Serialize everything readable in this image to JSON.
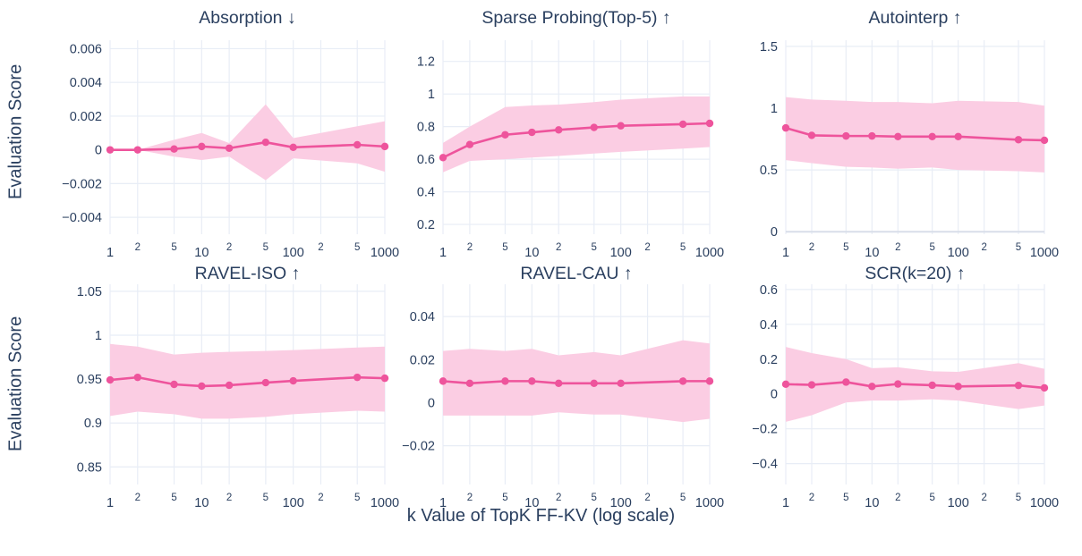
{
  "figure": {
    "x_axis_title": "k Value of TopK FF-KV (log scale)",
    "y_axis_title": "Evaluation Score",
    "colors": {
      "line": "#ee549c",
      "band": "#fbcde3",
      "grid": "#e8edf6",
      "zeroline": "#d8dee9",
      "text": "#2a3f5f",
      "background": "#ffffff"
    },
    "x_scale": "log",
    "x_range": [
      1,
      1000
    ],
    "x_ticks": {
      "values": [
        1,
        2,
        5,
        10,
        20,
        50,
        100,
        200,
        500,
        1000
      ],
      "labels": [
        "1",
        "2",
        "5",
        "10",
        "2",
        "5",
        "100",
        "2",
        "5",
        "1000"
      ],
      "major": [
        true,
        false,
        false,
        true,
        false,
        false,
        true,
        false,
        false,
        true
      ]
    }
  },
  "chart_data": [
    {
      "type": "line",
      "title": "Absorption ↓",
      "row": 0,
      "col": 0,
      "x": [
        1,
        2,
        5,
        10,
        20,
        50,
        100,
        500,
        1000
      ],
      "y": [
        0.0,
        0.0,
        5e-05,
        0.0002,
        0.0001,
        0.00045,
        0.00015,
        0.0003,
        0.0002
      ],
      "band_upper": [
        0.0,
        0.0,
        0.0006,
        0.001,
        0.0004,
        0.0027,
        0.0007,
        0.0014,
        0.0017
      ],
      "band_lower": [
        0.0,
        0.0,
        -0.0004,
        -0.0006,
        -0.0004,
        -0.0018,
        -0.0005,
        -0.0008,
        -0.0013
      ],
      "ylim": [
        -0.005,
        0.0065
      ],
      "yticks": [
        0.006,
        0.004,
        0.002,
        0,
        -0.002,
        -0.004
      ],
      "ytick_labels": [
        "0.006",
        "0.004",
        "0.002",
        "0",
        "−0.002",
        "−0.004"
      ]
    },
    {
      "type": "line",
      "title": "Sparse Probing(Top-5) ↑",
      "row": 0,
      "col": 1,
      "x": [
        1,
        2,
        5,
        10,
        20,
        50,
        100,
        500,
        1000
      ],
      "y": [
        0.61,
        0.69,
        0.75,
        0.765,
        0.78,
        0.795,
        0.805,
        0.815,
        0.82
      ],
      "band_upper": [
        0.7,
        0.8,
        0.92,
        0.93,
        0.935,
        0.95,
        0.965,
        0.985,
        0.985
      ],
      "band_lower": [
        0.52,
        0.59,
        0.6,
        0.61,
        0.62,
        0.635,
        0.645,
        0.665,
        0.675
      ],
      "ylim": [
        0.14,
        1.33
      ],
      "yticks": [
        1.2,
        1,
        0.8,
        0.6,
        0.4,
        0.2
      ],
      "ytick_labels": [
        "1.2",
        "1",
        "0.8",
        "0.6",
        "0.4",
        "0.2"
      ]
    },
    {
      "type": "line",
      "title": "Autointerp ↑",
      "row": 0,
      "col": 2,
      "x": [
        1,
        2,
        5,
        10,
        20,
        50,
        100,
        500,
        1000
      ],
      "y": [
        0.84,
        0.78,
        0.775,
        0.775,
        0.77,
        0.77,
        0.77,
        0.745,
        0.74
      ],
      "band_upper": [
        1.09,
        1.07,
        1.06,
        1.05,
        1.05,
        1.04,
        1.06,
        1.05,
        1.02
      ],
      "band_lower": [
        0.58,
        0.555,
        0.525,
        0.52,
        0.51,
        0.52,
        0.5,
        0.49,
        0.48
      ],
      "ylim": [
        -0.02,
        1.55
      ],
      "yticks": [
        1.5,
        1,
        0.5,
        0
      ],
      "ytick_labels": [
        "1.5",
        "1",
        "0.5",
        "0"
      ]
    },
    {
      "type": "line",
      "title": "RAVEL-ISO ↑",
      "row": 1,
      "col": 0,
      "x": [
        1,
        2,
        5,
        10,
        20,
        50,
        100,
        500,
        1000
      ],
      "y": [
        0.949,
        0.952,
        0.944,
        0.942,
        0.943,
        0.946,
        0.948,
        0.952,
        0.951
      ],
      "band_upper": [
        0.99,
        0.987,
        0.978,
        0.98,
        0.981,
        0.982,
        0.983,
        0.986,
        0.987
      ],
      "band_lower": [
        0.908,
        0.913,
        0.91,
        0.905,
        0.905,
        0.907,
        0.91,
        0.914,
        0.913
      ],
      "ylim": [
        0.83,
        1.058
      ],
      "yticks": [
        1.05,
        1,
        0.95,
        0.9,
        0.85
      ],
      "ytick_labels": [
        "1.05",
        "1",
        "0.95",
        "0.9",
        "0.85"
      ]
    },
    {
      "type": "line",
      "title": "RAVEL-CAU ↑",
      "row": 1,
      "col": 1,
      "x": [
        1,
        2,
        5,
        10,
        20,
        50,
        100,
        500,
        1000
      ],
      "y": [
        0.01,
        0.009,
        0.01,
        0.01,
        0.009,
        0.009,
        0.009,
        0.01,
        0.01
      ],
      "band_upper": [
        0.024,
        0.025,
        0.024,
        0.025,
        0.022,
        0.0235,
        0.022,
        0.029,
        0.0275
      ],
      "band_lower": [
        -0.006,
        -0.006,
        -0.006,
        -0.006,
        -0.0045,
        -0.0055,
        -0.0055,
        -0.009,
        -0.0075
      ],
      "ylim": [
        -0.038,
        0.055
      ],
      "yticks": [
        0.04,
        0.02,
        0,
        -0.02
      ],
      "ytick_labels": [
        "0.04",
        "0.02",
        "0",
        "−0.02"
      ]
    },
    {
      "type": "line",
      "title": "SCR(k=20) ↑",
      "row": 1,
      "col": 2,
      "x": [
        1,
        2,
        5,
        10,
        20,
        50,
        100,
        500,
        1000
      ],
      "y": [
        0.056,
        0.052,
        0.068,
        0.043,
        0.057,
        0.05,
        0.043,
        0.049,
        0.035
      ],
      "band_upper": [
        0.27,
        0.235,
        0.2,
        0.148,
        0.153,
        0.13,
        0.127,
        0.177,
        0.144
      ],
      "band_lower": [
        -0.16,
        -0.122,
        -0.049,
        -0.038,
        -0.038,
        -0.031,
        -0.038,
        -0.087,
        -0.066
      ],
      "ylim": [
        -0.52,
        0.63
      ],
      "yticks": [
        0.6,
        0.4,
        0.2,
        0,
        -0.2,
        -0.4
      ],
      "ytick_labels": [
        "0.6",
        "0.4",
        "0.2",
        "0",
        "−0.2",
        "−0.4"
      ]
    }
  ]
}
